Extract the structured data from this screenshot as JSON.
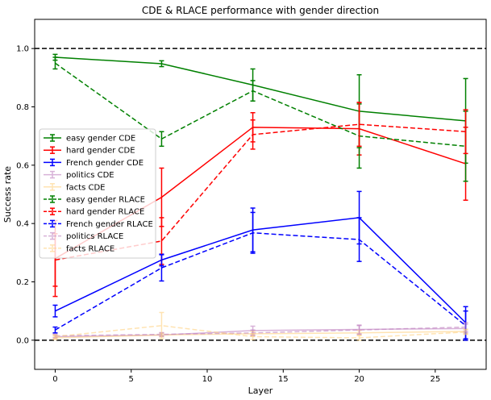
{
  "chart_data": {
    "type": "line",
    "title": "CDE & RLACE performance with gender direction",
    "xlabel": "Layer",
    "ylabel": "Success rate",
    "xlim": [
      -1.35,
      28.35
    ],
    "ylim": [
      -0.1,
      1.1
    ],
    "x_ticks": [
      0,
      5,
      10,
      15,
      20,
      25
    ],
    "y_ticks": [
      0.0,
      0.2,
      0.4,
      0.6,
      0.8,
      1.0
    ],
    "x_tick_labels": [
      "0",
      "5",
      "10",
      "15",
      "20",
      "25"
    ],
    "y_tick_labels": [
      "0.0",
      "0.2",
      "0.4",
      "0.6",
      "0.8",
      "1.0"
    ],
    "grid": false,
    "legend_position": "left",
    "reference_lines": [
      {
        "y": 1.0,
        "color": "#000000",
        "style": "dashed"
      },
      {
        "y": 0.0,
        "color": "#000000",
        "style": "dashed"
      }
    ],
    "x": [
      0,
      7,
      13,
      20,
      27
    ],
    "series": [
      {
        "name": "easy gender CDE",
        "color": "#008000",
        "style": "solid",
        "opacity": 1,
        "values": [
          0.97,
          0.948,
          0.875,
          0.785,
          0.752
        ],
        "errors": [
          0.01,
          0.01,
          0.055,
          0.125,
          0.145
        ]
      },
      {
        "name": "hard gender CDE",
        "color": "#ff0000",
        "style": "solid",
        "opacity": 1,
        "values": [
          0.28,
          0.49,
          0.73,
          0.725,
          0.605
        ],
        "errors": [
          0.13,
          0.1,
          0.05,
          0.09,
          0.125
        ]
      },
      {
        "name": "French gender CDE",
        "color": "#0000ff",
        "style": "solid",
        "opacity": 1,
        "values": [
          0.1,
          0.275,
          0.378,
          0.42,
          0.06
        ],
        "errors": [
          0.02,
          0.02,
          0.075,
          0.09,
          0.055
        ]
      },
      {
        "name": "politics CDE",
        "color": "#bf7fbf",
        "style": "solid",
        "opacity": 0.6,
        "values": [
          0.012,
          0.018,
          0.033,
          0.037,
          0.04
        ],
        "errors": [
          0.006,
          0.006,
          0.015,
          0.015,
          0.015
        ]
      },
      {
        "name": "facts CDE",
        "color": "#ffd27f",
        "style": "solid",
        "opacity": 0.6,
        "values": [
          0.008,
          0.018,
          0.022,
          0.025,
          0.03
        ],
        "errors": [
          0.006,
          0.006,
          0.008,
          0.008,
          0.008
        ]
      },
      {
        "name": "easy gender RLACE",
        "color": "#008000",
        "style": "dashed",
        "opacity": 1,
        "values": [
          0.95,
          0.69,
          0.855,
          0.7,
          0.665
        ],
        "errors": [
          0.02,
          0.025,
          0.035,
          0.11,
          0.12
        ]
      },
      {
        "name": "hard gender RLACE",
        "color": "#ff0000",
        "style": "dashed",
        "opacity": 1,
        "values": [
          0.275,
          0.34,
          0.705,
          0.74,
          0.715
        ],
        "errors": [
          0.09,
          0.08,
          0.05,
          0.075,
          0.075
        ]
      },
      {
        "name": "French gender RLACE",
        "color": "#0000ff",
        "style": "dashed",
        "opacity": 1,
        "values": [
          0.035,
          0.248,
          0.368,
          0.345,
          0.05
        ],
        "errors": [
          0.01,
          0.045,
          0.07,
          0.075,
          0.05
        ]
      },
      {
        "name": "politics RLACE",
        "color": "#bf7fbf",
        "style": "dashed",
        "opacity": 0.6,
        "values": [
          0.015,
          0.02,
          0.025,
          0.035,
          0.045
        ],
        "errors": [
          0.006,
          0.006,
          0.01,
          0.015,
          0.015
        ]
      },
      {
        "name": "facts RLACE",
        "color": "#ffd27f",
        "style": "dashed",
        "opacity": 0.6,
        "values": [
          0.012,
          0.05,
          0.012,
          0.008,
          0.028
        ],
        "errors": [
          0.006,
          0.045,
          0.01,
          0.008,
          0.008
        ]
      }
    ]
  }
}
